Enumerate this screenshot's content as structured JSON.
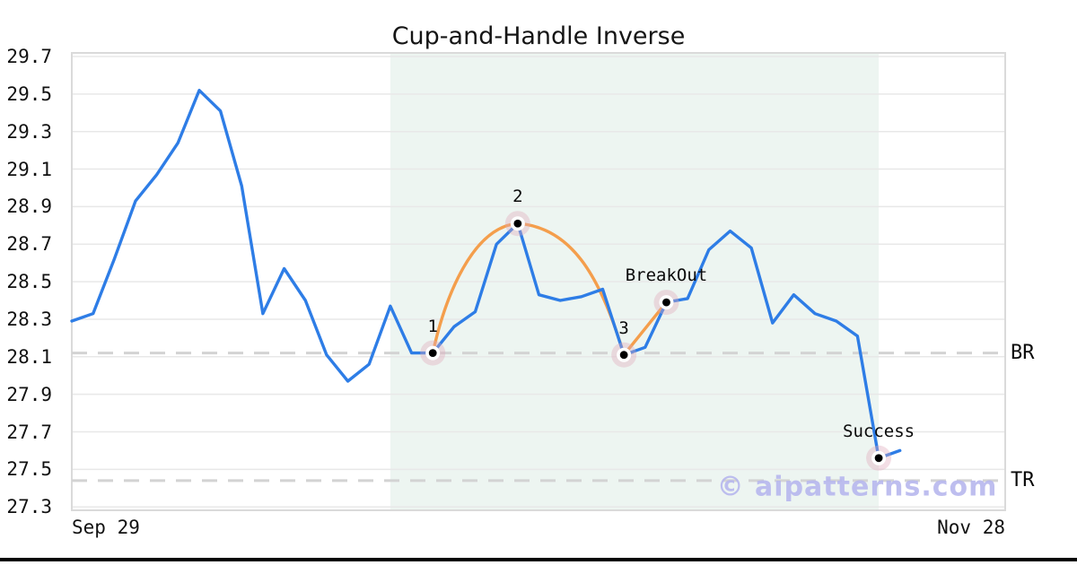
{
  "watermark": "© aipatterns.com",
  "chart_data": {
    "type": "line",
    "title": "Cup-and-Handle Inverse",
    "x_axis": {
      "start_label": "Sep 29",
      "end_label": "Nov 28"
    },
    "y_axis": {
      "min": 27.3,
      "max": 29.7,
      "tick_step": 0.2,
      "tick_labels": [
        "29.7",
        "29.5",
        "29.3",
        "29.1",
        "28.9",
        "28.7",
        "28.5",
        "28.3",
        "28.1",
        "27.9",
        "27.7",
        "27.5",
        "27.3"
      ]
    },
    "grid": "horizontal",
    "series": [
      {
        "name": "price",
        "values": [
          28.29,
          28.33,
          28.62,
          28.93,
          29.07,
          29.24,
          29.52,
          29.41,
          29.01,
          28.33,
          28.57,
          28.4,
          28.11,
          27.97,
          28.06,
          28.37,
          28.12,
          28.12,
          28.26,
          28.34,
          28.7,
          28.81,
          28.43,
          28.4,
          28.42,
          28.46,
          28.11,
          28.15,
          28.39,
          28.41,
          28.67,
          28.77,
          28.68,
          28.28,
          28.43,
          28.33,
          28.29,
          28.21,
          27.56,
          27.6
        ]
      }
    ],
    "pattern_points": [
      {
        "label": "1",
        "index": 17,
        "value": 28.12
      },
      {
        "label": "2",
        "index": 21,
        "value": 28.81
      },
      {
        "label": "3",
        "index": 26,
        "value": 28.11
      },
      {
        "label": "BreakOut",
        "index": 28,
        "value": 28.39
      },
      {
        "label": "Success",
        "index": 38,
        "value": 27.56
      }
    ],
    "levels": [
      {
        "label": "BR",
        "value": 28.12
      },
      {
        "label": "TR",
        "value": 27.44
      }
    ],
    "shaded_region": {
      "start_index": 15,
      "end_index": 38
    },
    "colors": {
      "price_line": "#2e7de6",
      "pattern_line": "#f49e4c",
      "shade": "#edf5f1",
      "grid": "#e8e8e8",
      "border": "#dadada",
      "dashed": "#d3d3d3",
      "marker_halo": "#dfa8bb",
      "marker_ring": "#ffffff",
      "marker_dot": "#000000",
      "watermark": "#b7b7ee"
    }
  }
}
